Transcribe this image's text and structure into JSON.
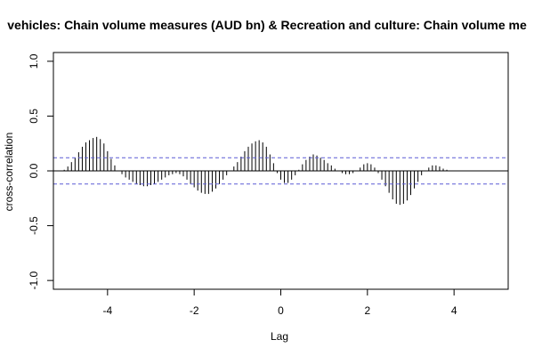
{
  "chart_data": {
    "type": "bar",
    "title": "vehicles: Chain volume measures (AUD bn) & Recreation and culture: Chain volume me",
    "xlabel": "Lag",
    "ylabel": "cross-correlation",
    "xlim": [
      -5.25,
      5.25
    ],
    "ylim": [
      -1.08,
      1.08
    ],
    "x_ticks": [
      -4,
      -2,
      0,
      2,
      4
    ],
    "x_tick_labels": [
      "-4",
      "-2",
      "0",
      "2",
      "4"
    ],
    "y_ticks": [
      -1.0,
      -0.5,
      0.0,
      0.5,
      1.0
    ],
    "y_tick_labels": [
      "-1.0",
      "-0.5",
      "0.0",
      "0.5",
      "1.0"
    ],
    "confidence_bounds": [
      0.12,
      -0.12
    ],
    "lags": [
      -5.0,
      -4.917,
      -4.833,
      -4.75,
      -4.667,
      -4.583,
      -4.5,
      -4.417,
      -4.333,
      -4.25,
      -4.167,
      -4.083,
      -4.0,
      -3.917,
      -3.833,
      -3.75,
      -3.667,
      -3.583,
      -3.5,
      -3.417,
      -3.333,
      -3.25,
      -3.167,
      -3.083,
      -3.0,
      -2.917,
      -2.833,
      -2.75,
      -2.667,
      -2.583,
      -2.5,
      -2.417,
      -2.333,
      -2.25,
      -2.167,
      -2.083,
      -2.0,
      -1.917,
      -1.833,
      -1.75,
      -1.667,
      -1.583,
      -1.5,
      -1.417,
      -1.333,
      -1.25,
      -1.167,
      -1.083,
      -1.0,
      -0.917,
      -0.833,
      -0.75,
      -0.667,
      -0.583,
      -0.5,
      -0.417,
      -0.333,
      -0.25,
      -0.167,
      -0.083,
      0.0,
      0.083,
      0.167,
      0.25,
      0.333,
      0.417,
      0.5,
      0.583,
      0.667,
      0.75,
      0.833,
      0.917,
      1.0,
      1.083,
      1.167,
      1.25,
      1.333,
      1.417,
      1.5,
      1.583,
      1.667,
      1.75,
      1.833,
      1.917,
      2.0,
      2.083,
      2.167,
      2.25,
      2.333,
      2.417,
      2.5,
      2.583,
      2.667,
      2.75,
      2.833,
      2.917,
      3.0,
      3.083,
      3.167,
      3.25,
      3.333,
      3.417,
      3.5,
      3.583,
      3.667,
      3.75,
      3.833,
      3.917,
      4.0,
      4.083,
      4.167,
      4.25,
      4.333,
      4.417,
      4.5,
      4.583,
      4.667,
      4.75,
      4.833,
      4.917,
      5.0
    ],
    "values": [
      0.01,
      0.04,
      0.08,
      0.12,
      0.17,
      0.22,
      0.26,
      0.28,
      0.3,
      0.31,
      0.29,
      0.25,
      0.18,
      0.11,
      0.05,
      0.0,
      -0.03,
      -0.06,
      -0.08,
      -0.1,
      -0.12,
      -0.13,
      -0.14,
      -0.14,
      -0.13,
      -0.12,
      -0.1,
      -0.08,
      -0.06,
      -0.04,
      -0.03,
      -0.02,
      -0.03,
      -0.05,
      -0.08,
      -0.12,
      -0.15,
      -0.18,
      -0.2,
      -0.21,
      -0.21,
      -0.19,
      -0.16,
      -0.12,
      -0.08,
      -0.04,
      0.0,
      0.04,
      0.08,
      0.13,
      0.18,
      0.22,
      0.25,
      0.27,
      0.28,
      0.26,
      0.22,
      0.15,
      0.07,
      -0.02,
      -0.08,
      -0.11,
      -0.11,
      -0.08,
      -0.04,
      0.01,
      0.06,
      0.1,
      0.13,
      0.15,
      0.14,
      0.12,
      0.1,
      0.07,
      0.05,
      0.02,
      0.0,
      -0.02,
      -0.03,
      -0.03,
      -0.02,
      0.0,
      0.03,
      0.06,
      0.07,
      0.06,
      0.03,
      -0.02,
      -0.08,
      -0.14,
      -0.2,
      -0.26,
      -0.3,
      -0.31,
      -0.3,
      -0.27,
      -0.22,
      -0.16,
      -0.1,
      -0.04,
      0.0,
      0.03,
      0.05,
      0.05,
      0.04,
      0.02,
      0.01,
      0.0,
      0.0,
      0.0,
      0.0,
      0.0,
      0.0,
      0.0,
      0.0,
      0.0,
      0.0,
      0.0,
      0.0,
      0.0,
      0.0
    ],
    "grid": false,
    "colors": {
      "bars": "#000000",
      "bounds": "#5b5bd6",
      "zero": "#000000",
      "frame": "#000000"
    }
  }
}
